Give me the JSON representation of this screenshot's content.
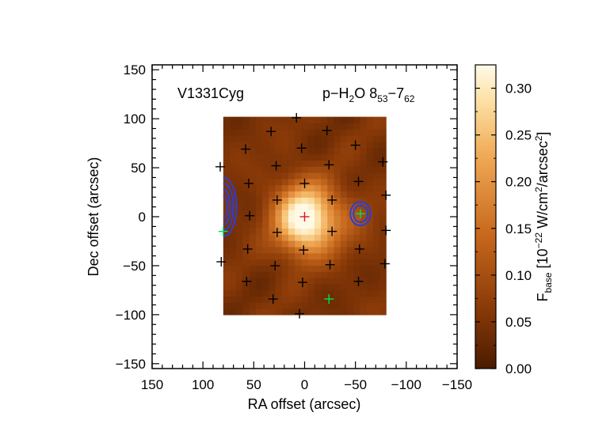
{
  "chart_data": {
    "type": "heatmap",
    "object_label": "V1331Cyg",
    "line_label": {
      "prefix": "p−H",
      "sub1": "2",
      "mid": "O 8",
      "sub2": "53",
      "dash": "−7",
      "sub3": "62"
    },
    "xlabel": "RA offset (arcsec)",
    "ylabel": "Dec offset (arcsec)",
    "xlim": [
      150,
      -150
    ],
    "ylim": [
      -155,
      155
    ],
    "xticks": [
      150,
      100,
      50,
      0,
      -50,
      -100,
      -150
    ],
    "xtick_labels": [
      "150",
      "100",
      "50",
      "0",
      "−50",
      "−100",
      "−150"
    ],
    "yticks": [
      150,
      100,
      50,
      0,
      -50,
      -100,
      -150
    ],
    "ytick_labels": [
      "150",
      "100",
      "50",
      "0",
      "−50",
      "−100",
      "−150"
    ],
    "map_extent": {
      "x": [
        80,
        -80
      ],
      "y": [
        -100,
        102
      ]
    },
    "peak_position": [
      0,
      0
    ],
    "colorbar": {
      "range": [
        0.0,
        0.325
      ],
      "ticks": [
        0.0,
        0.05,
        0.1,
        0.15,
        0.2,
        0.25,
        0.3
      ],
      "tick_labels": [
        "0.00",
        "0.05",
        "0.10",
        "0.15",
        "0.20",
        "0.25",
        "0.30"
      ],
      "label": {
        "base": "F",
        "base_sub": "base",
        "bracket_open": " [10",
        "exp": "−22",
        "unit_a": " W/cm",
        "exp2": "2",
        "unit_b": "/arcsec",
        "exp3": "2",
        "bracket_close": "]"
      }
    },
    "spaxel_markers": [
      {
        "x": 8,
        "y": 101
      },
      {
        "x": 33,
        "y": 87
      },
      {
        "x": -22,
        "y": 88
      },
      {
        "x": 58,
        "y": 69
      },
      {
        "x": 3,
        "y": 70
      },
      {
        "x": -50,
        "y": 73
      },
      {
        "x": 83,
        "y": 51
      },
      {
        "x": 28,
        "y": 52
      },
      {
        "x": -24,
        "y": 53
      },
      {
        "x": -77,
        "y": 56
      },
      {
        "x": 55,
        "y": 34
      },
      {
        "x": 0,
        "y": 34
      },
      {
        "x": -53,
        "y": 36
      },
      {
        "x": 27,
        "y": 17
      },
      {
        "x": -27,
        "y": 17
      },
      {
        "x": -80,
        "y": 22
      },
      {
        "x": 54,
        "y": 1
      },
      {
        "x": 27,
        "y": -16
      },
      {
        "x": -27,
        "y": -15
      },
      {
        "x": -80,
        "y": -14
      },
      {
        "x": 56,
        "y": -33
      },
      {
        "x": 1,
        "y": -34
      },
      {
        "x": -54,
        "y": -33
      },
      {
        "x": 82,
        "y": -46
      },
      {
        "x": 29,
        "y": -50
      },
      {
        "x": -25,
        "y": -49
      },
      {
        "x": -79,
        "y": -48
      },
      {
        "x": 57,
        "y": -66
      },
      {
        "x": 2,
        "y": -67
      },
      {
        "x": -53,
        "y": -66
      },
      {
        "x": 31,
        "y": -84
      },
      {
        "x": 5,
        "y": -99
      }
    ],
    "highlight_markers": [
      {
        "x": 0,
        "y": 0,
        "color": "#e0161b"
      },
      {
        "x": 80,
        "y": -15,
        "color": "#00e05a"
      },
      {
        "x": -55,
        "y": 3,
        "color": "#00e05a"
      },
      {
        "x": -24,
        "y": -84,
        "color": "#00e05a"
      }
    ],
    "contour_color": "#2b3fd6",
    "emission_sources": [
      {
        "x": 0,
        "y": 0,
        "amplitude": 0.27,
        "sigma_x": 20,
        "sigma_y": 24
      },
      {
        "x": -10,
        "y": -15,
        "amplitude": 0.05,
        "sigma_x": 26,
        "sigma_y": 22
      },
      {
        "x": -45,
        "y": 5,
        "amplitude": 0.03,
        "sigma_x": 18,
        "sigma_y": 20
      }
    ],
    "background_level": 0.05
  }
}
